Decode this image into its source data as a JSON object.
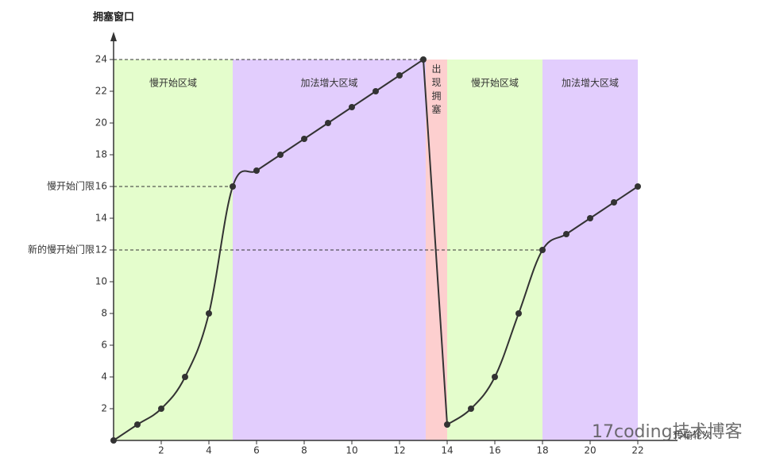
{
  "chart_data": {
    "type": "line",
    "y_label": "拥塞窗口",
    "x_label": "传输轮次",
    "x": [
      0,
      1,
      2,
      3,
      4,
      5,
      6,
      7,
      8,
      9,
      10,
      11,
      12,
      13,
      14,
      15,
      16,
      17,
      18,
      19,
      20,
      21,
      22
    ],
    "series": [
      {
        "name": "拥塞窗口",
        "color": "#333333",
        "values": [
          0,
          1,
          2,
          4,
          8,
          16,
          17,
          18,
          19,
          20,
          21,
          22,
          23,
          24,
          1,
          2,
          4,
          8,
          12,
          13,
          14,
          15,
          16
        ]
      }
    ],
    "xlim": [
      0,
      22
    ],
    "xticks": [
      2,
      4,
      6,
      8,
      10,
      12,
      14,
      16,
      18,
      20,
      22
    ],
    "ylim": [
      0,
      24
    ],
    "yticks": [
      2,
      4,
      6,
      8,
      10,
      12,
      14,
      16,
      18,
      20,
      22,
      24
    ],
    "regions": [
      {
        "label": "慢开始区域",
        "from": 0,
        "to": 5,
        "color": "#e4fdcc"
      },
      {
        "label": "加法增大区域",
        "from": 5,
        "to": 13.1,
        "color": "#e2cdfd"
      },
      {
        "label": "出现拥塞",
        "from": 13.1,
        "to": 14,
        "color": "#fdcfcf"
      },
      {
        "label": "慢开始区域",
        "from": 14,
        "to": 18,
        "color": "#e4fdcc"
      },
      {
        "label": "加法增大区域",
        "from": 18,
        "to": 22,
        "color": "#e2cdfd"
      }
    ],
    "hlines": [
      {
        "value": 24,
        "to": 13
      },
      {
        "value": 16,
        "to": 5,
        "label": "慢开始门限"
      },
      {
        "value": 12,
        "to": 18,
        "label": "新的慢开始门限"
      }
    ],
    "watermark": "17coding技术博客"
  }
}
